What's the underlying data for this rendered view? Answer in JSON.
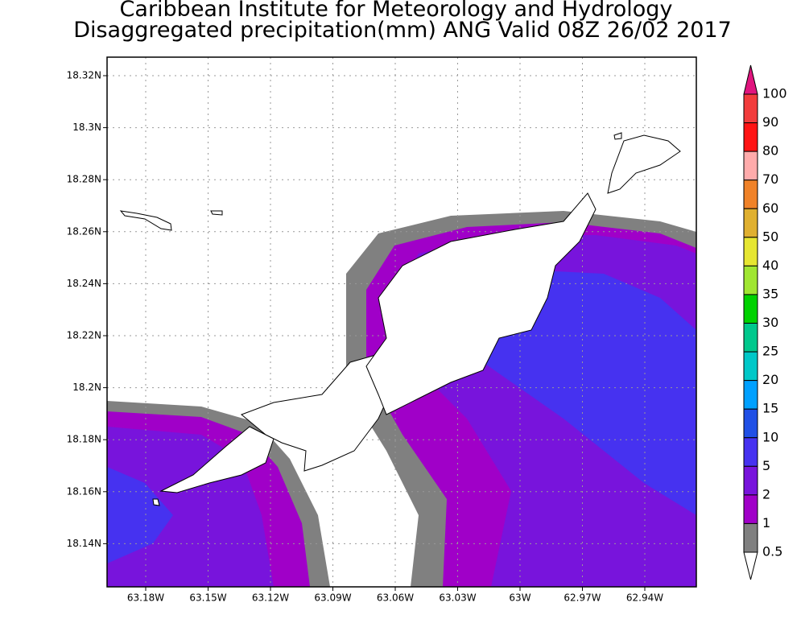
{
  "header": {
    "title": "Caribbean Institute for Meteorology and Hydrology",
    "subtitle": "Disaggregated precipitation(mm) ANG Valid 08Z 26/02 2017"
  },
  "map": {
    "y_ticks": [
      "18.32N",
      "18.3N",
      "18.28N",
      "18.26N",
      "18.24N",
      "18.22N",
      "18.2N",
      "18.18N",
      "18.16N",
      "18.14N"
    ],
    "x_ticks": [
      "63.18W",
      "63.15W",
      "63.12W",
      "63.09W",
      "63.06W",
      "63.03W",
      "63W",
      "62.97W",
      "62.94W"
    ]
  },
  "colorbar": {
    "labels": [
      "100",
      "90",
      "80",
      "70",
      "60",
      "50",
      "40",
      "35",
      "30",
      "25",
      "20",
      "15",
      "10",
      "5",
      "2",
      "1",
      "0.5"
    ],
    "colors": [
      "#e0157e",
      "#f23c3c",
      "#ff1414",
      "#ffabab",
      "#f08228",
      "#e0b030",
      "#e6e632",
      "#a0e632",
      "#00d200",
      "#00c88c",
      "#00c8c8",
      "#00a0ff",
      "#2050e6",
      "#4632f0",
      "#7814dc",
      "#a000c8",
      "#808080",
      "#ffffff"
    ]
  }
}
